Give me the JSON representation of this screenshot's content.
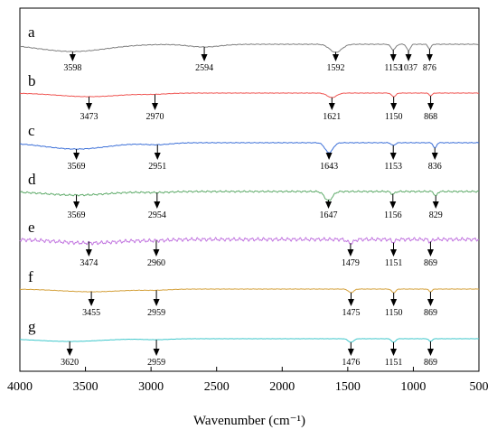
{
  "chart_data": {
    "type": "line",
    "xlabel": "Wavenumber (cm⁻¹)",
    "ylabel": "",
    "xlim": [
      4000,
      500
    ],
    "x_ticks": [
      "4000",
      "3500",
      "3000",
      "2500",
      "2000",
      "1500",
      "1000",
      "500"
    ],
    "x_tick_values": [
      4000,
      3500,
      3000,
      2500,
      2000,
      1500,
      1000,
      500
    ],
    "grid": false,
    "y_ticks_shown": false,
    "series": [
      {
        "name": "a",
        "color": "#7f7f7f",
        "noise": 0.25,
        "bands": [
          [
            3598,
            8,
            260
          ],
          [
            2594,
            3,
            120
          ],
          [
            1592,
            9,
            45
          ],
          [
            1153,
            6,
            18
          ],
          [
            1037,
            7,
            14
          ],
          [
            876,
            5,
            12
          ]
        ],
        "labels": [
          "3598",
          "2594",
          "1592",
          "1153",
          "1037",
          "876"
        ]
      },
      {
        "name": "b",
        "color": "#ef5350",
        "noise": 0.15,
        "bands": [
          [
            3473,
            4,
            240
          ],
          [
            2970,
            1,
            100
          ],
          [
            1621,
            5,
            35
          ],
          [
            1150,
            4,
            16
          ],
          [
            868,
            3,
            12
          ]
        ],
        "labels": [
          "3473",
          "2970",
          "1621",
          "1150",
          "868"
        ]
      },
      {
        "name": "c",
        "color": "#3b6fd8",
        "noise": 0.25,
        "bands": [
          [
            3569,
            7,
            240
          ],
          [
            2951,
            2,
            100
          ],
          [
            1643,
            11,
            30
          ],
          [
            1153,
            3,
            15
          ],
          [
            836,
            6,
            12
          ]
        ],
        "labels": [
          "3569",
          "2951",
          "1643",
          "1153",
          "836"
        ]
      },
      {
        "name": "d",
        "color": "#5fab6a",
        "noise": 0.6,
        "bands": [
          [
            3569,
            4,
            240
          ],
          [
            2954,
            1,
            100
          ],
          [
            1647,
            10,
            30
          ],
          [
            1156,
            3,
            15
          ],
          [
            829,
            5,
            12
          ]
        ],
        "labels": [
          "3569",
          "2954",
          "1647",
          "1156",
          "829"
        ]
      },
      {
        "name": "e",
        "color": "#c276e0",
        "noise": 1.3,
        "bands": [
          [
            3474,
            4,
            240
          ],
          [
            2960,
            1,
            100
          ],
          [
            1479,
            4,
            25
          ],
          [
            1151,
            3,
            15
          ],
          [
            869,
            3,
            12
          ]
        ],
        "labels": [
          "3474",
          "2960",
          "1479",
          "1151",
          "869"
        ]
      },
      {
        "name": "f",
        "color": "#d4a03a",
        "noise": 0.15,
        "bands": [
          [
            3455,
            3,
            240
          ],
          [
            2959,
            1,
            100
          ],
          [
            1475,
            4,
            20
          ],
          [
            1150,
            4,
            15
          ],
          [
            869,
            3,
            12
          ]
        ],
        "labels": [
          "3455",
          "2959",
          "1475",
          "1150",
          "869"
        ]
      },
      {
        "name": "g",
        "color": "#3ec7cb",
        "noise": 0.1,
        "bands": [
          [
            3620,
            3,
            240
          ],
          [
            2959,
            1,
            100
          ],
          [
            1476,
            4,
            20
          ],
          [
            1151,
            4,
            15
          ],
          [
            869,
            3,
            12
          ]
        ],
        "labels": [
          "3620",
          "2959",
          "1476",
          "1151",
          "869"
        ]
      }
    ]
  }
}
